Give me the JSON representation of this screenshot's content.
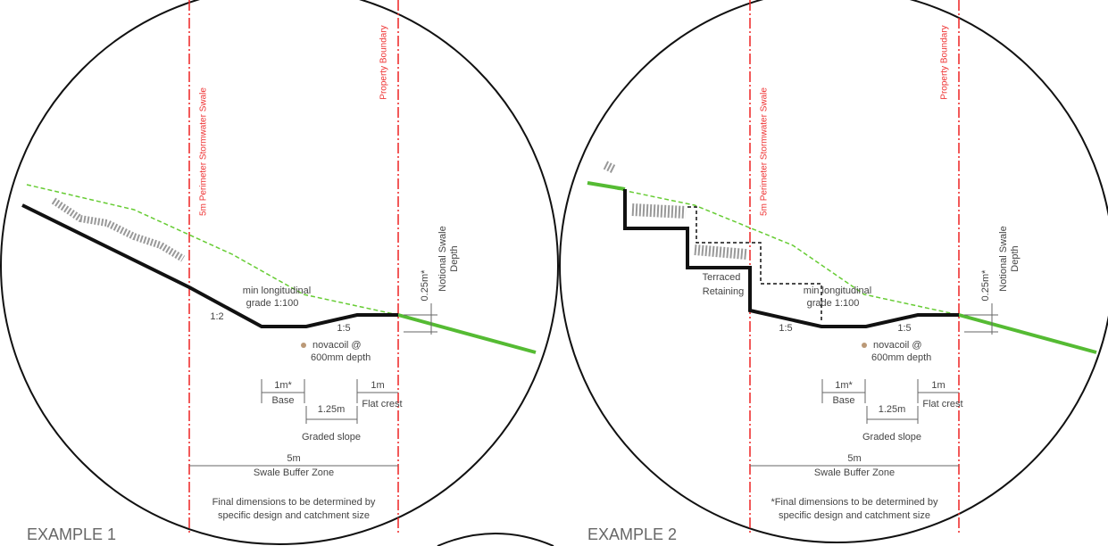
{
  "examples": [
    {
      "title": "EXAMPLE 1",
      "swale_label": "5m Perimeter Stormwater Swale",
      "boundary_label": "Property Boundary",
      "grade_line1": "min longitudinal",
      "grade_line2": "grade 1:100",
      "slope_left": "1:2",
      "slope_right": "1:5",
      "novacoil_line1": "novacoil @",
      "novacoil_line2": "600mm depth",
      "depth_value": "0.25m*",
      "depth_label_line1": "Notional Swale",
      "depth_label_line2": "Depth",
      "base_value": "1m*",
      "base_label": "Base",
      "slope_value": "1.25m",
      "slope_label": "Graded slope",
      "crest_value": "1m",
      "crest_label": "Flat crest",
      "buffer_value": "5m",
      "buffer_label": "Swale Buffer Zone",
      "note_line1": "Final dimensions to be determined by",
      "note_line2": "specific design and catchment size"
    },
    {
      "title": "EXAMPLE 2",
      "swale_label": "5m Perimeter Stormwater Swale",
      "boundary_label": "Property Boundary",
      "grade_line1": "min longitudinal",
      "grade_line2": "grade 1:100",
      "slope_left": "1:5",
      "slope_right": "1:5",
      "novacoil_line1": "novacoil @",
      "novacoil_line2": "600mm depth",
      "depth_value": "0.25m*",
      "depth_label_line1": "Notional Swale",
      "depth_label_line2": "Depth",
      "base_value": "1m*",
      "base_label": "Base",
      "slope_value": "1.25m",
      "slope_label": "Graded slope",
      "crest_value": "1m",
      "crest_label": "Flat crest",
      "buffer_value": "5m",
      "buffer_label": "Swale Buffer Zone",
      "note_line1": "*Final dimensions to be determined by",
      "note_line2": "specific design and catchment size",
      "terraced_line1": "Terraced",
      "terraced_line2": "Retaining"
    }
  ]
}
